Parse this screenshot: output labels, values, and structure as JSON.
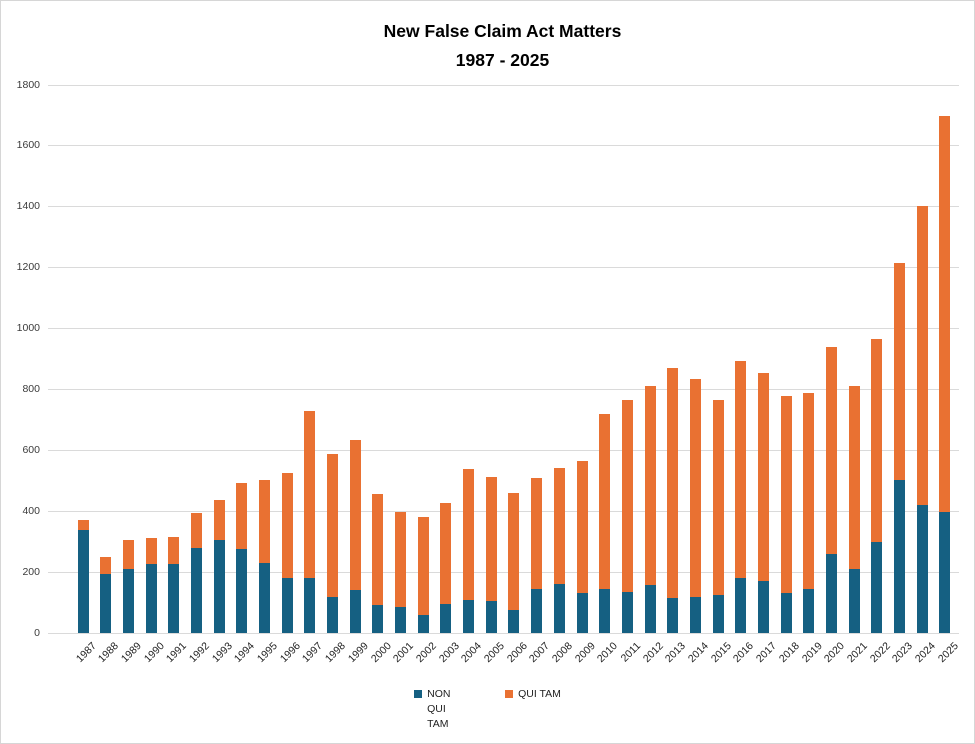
{
  "chart_data": {
    "type": "bar",
    "stacked": true,
    "title": "New False Claim Act Matters",
    "subtitle": "1987 - 2025",
    "categories": [
      1987,
      1988,
      1989,
      1990,
      1991,
      1992,
      1993,
      1994,
      1995,
      1996,
      1997,
      1998,
      1999,
      2000,
      2001,
      2002,
      2003,
      2004,
      2005,
      2006,
      2007,
      2008,
      2009,
      2010,
      2011,
      2012,
      2013,
      2014,
      2015,
      2016,
      2017,
      2018,
      2019,
      2020,
      2021,
      2022,
      2023,
      2024,
      2025
    ],
    "series": [
      {
        "name": "NON QUI TAM",
        "color": "#156082",
        "values": [
          340,
          195,
          210,
          228,
          228,
          280,
          306,
          276,
          230,
          180,
          180,
          117,
          140,
          93,
          87,
          60,
          96,
          110,
          105,
          75,
          146,
          161,
          132,
          143,
          134,
          157,
          115,
          118,
          126,
          182,
          170,
          130,
          143,
          259,
          210,
          300,
          503,
          420,
          399
        ]
      },
      {
        "name": "QUI TAM",
        "color": "#E97132",
        "values": [
          30,
          55,
          95,
          83,
          88,
          115,
          131,
          218,
          272,
          345,
          548,
          470,
          493,
          363,
          312,
          320,
          331,
          430,
          407,
          384,
          364,
          380,
          433,
          575,
          632,
          653,
          755,
          715,
          638,
          710,
          685,
          648,
          645,
          680,
          600,
          665,
          714,
          982,
          1298
        ]
      }
    ],
    "xlabel": "",
    "ylabel": "",
    "ylim": [
      0,
      1800
    ],
    "ytick_step": 200,
    "grid": true,
    "legend_position": "bottom",
    "x_tick_rotation": -45
  },
  "colors": {
    "background": "#ffffff",
    "border": "#d6d6d6",
    "gridline": "#dadada",
    "title": "#000000",
    "y_tick_text": "#3b3b3b",
    "x_tick_text": "#1f1f1f"
  }
}
